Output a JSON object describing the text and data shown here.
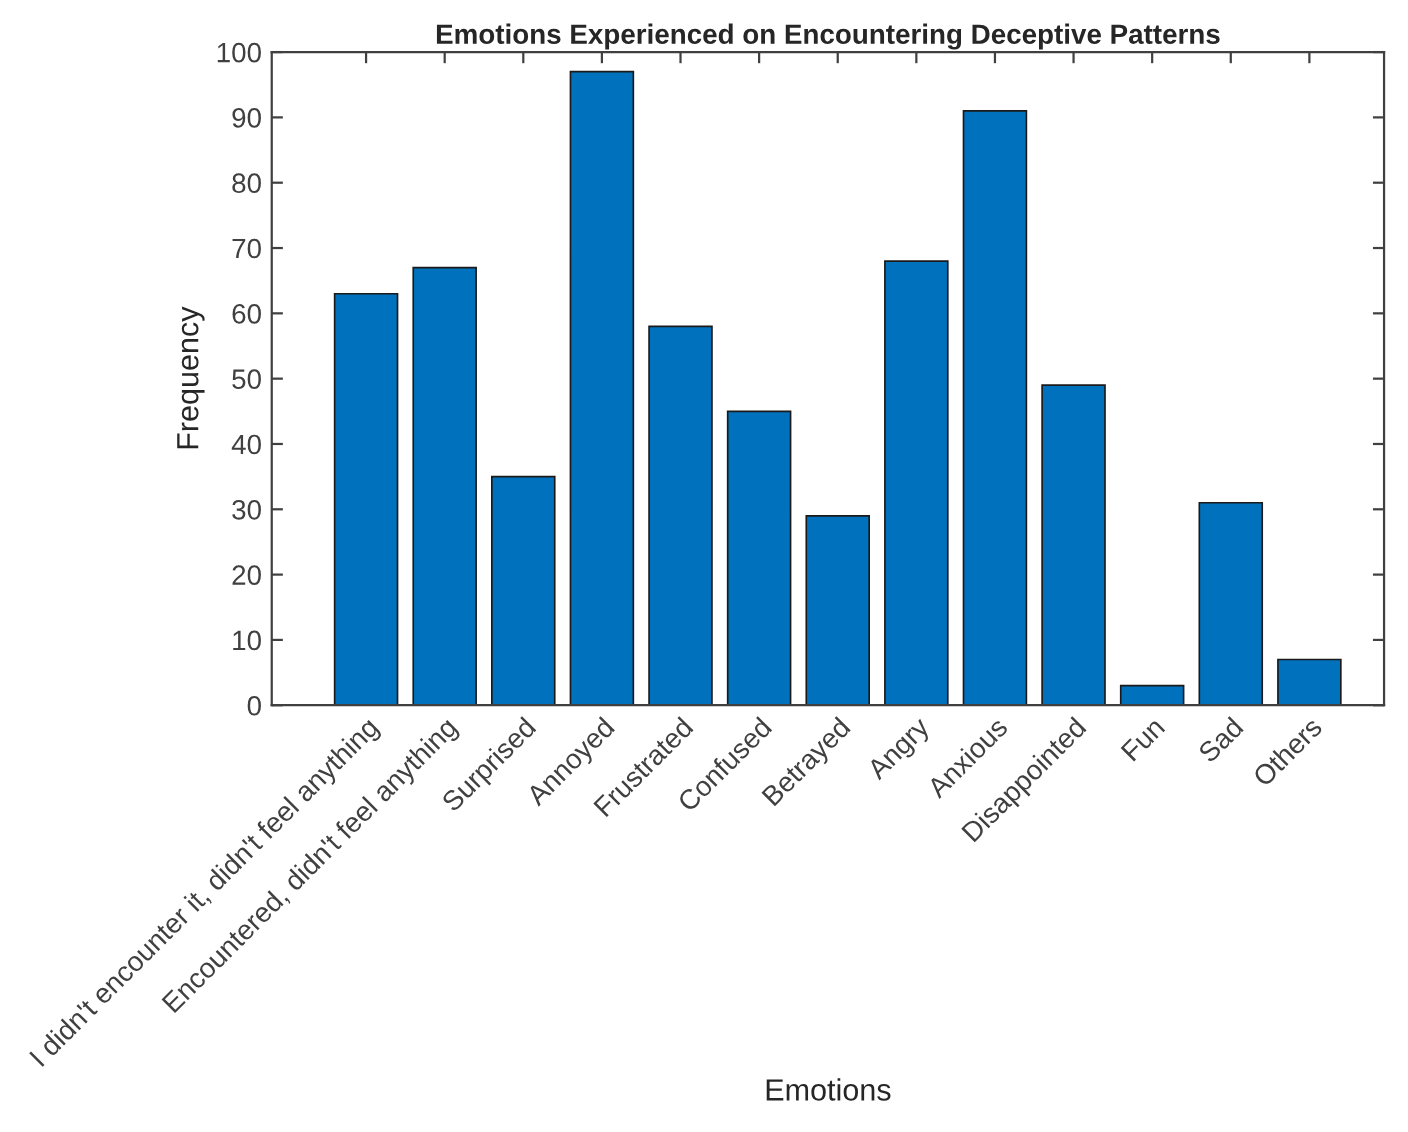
{
  "chart_data": {
    "type": "bar",
    "title": "Emotions Experienced on Encountering Deceptive Patterns",
    "xlabel": "Emotions",
    "ylabel": "Frequency",
    "categories": [
      "I didn't encounter it, didn't feel anything",
      "Encountered, didn't feel anything",
      "Surprised",
      "Annoyed",
      "Frustrated",
      "Confused",
      "Betrayed",
      "Angry",
      "Anxious",
      "Disappointed",
      "Fun",
      "Sad",
      "Others"
    ],
    "values": [
      63,
      67,
      35,
      97,
      58,
      45,
      29,
      68,
      91,
      49,
      3,
      31,
      7
    ],
    "color": "#0072bd",
    "ylim": [
      0,
      100
    ],
    "yticks": [
      0,
      10,
      20,
      30,
      40,
      50,
      60,
      70,
      80,
      90,
      100
    ],
    "grid": false
  }
}
